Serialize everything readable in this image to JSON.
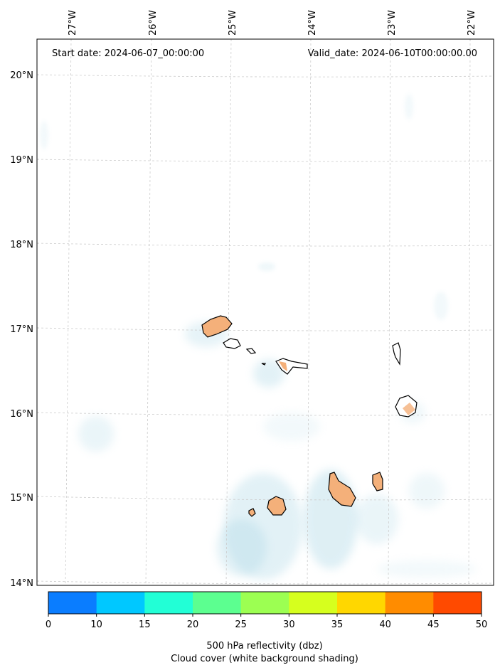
{
  "header": {
    "start_date": "Start date: 2024-06-07_00:00:00",
    "valid_date": "Valid_date: 2024-06-10T00:00:00.00"
  },
  "map": {
    "lon_labels": [
      "27°W",
      "26°W",
      "25°W",
      "24°W",
      "23°W",
      "22°W"
    ],
    "lat_labels": [
      "20°N",
      "19°N",
      "18°N",
      "17°N",
      "16°N",
      "15°N",
      "14°N"
    ]
  },
  "colorbar": {
    "ticks": [
      "0",
      "10",
      "15",
      "20",
      "25",
      "30",
      "35",
      "40",
      "45",
      "50"
    ],
    "colors": [
      "#0a7dff",
      "#00c8ff",
      "#22ffd6",
      "#5cff90",
      "#9cff52",
      "#d6ff1e",
      "#ffd700",
      "#ff8c00",
      "#ff4a00"
    ],
    "label_line1": "500 hPa reflectivity (dbz)",
    "label_line2": "Cloud cover (white background shading)"
  },
  "styles": {
    "cloud_color": "#add8e6",
    "island_fill": "#f4b07a",
    "gridline_color": "#cccccc"
  }
}
